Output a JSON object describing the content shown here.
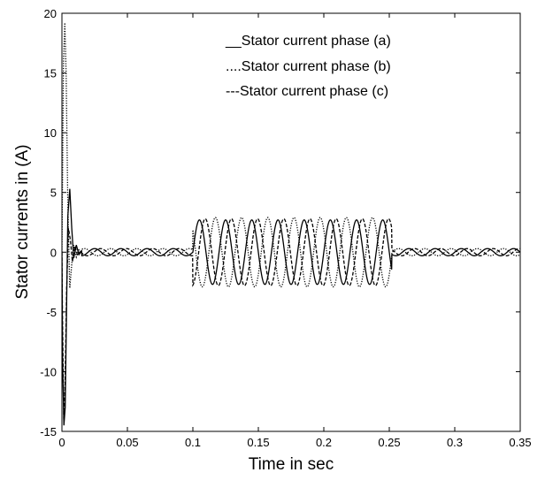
{
  "chart_data": {
    "type": "line",
    "xlabel": "Time in sec",
    "ylabel": "Stator currents in (A)",
    "xlim": [
      0,
      0.35
    ],
    "ylim": [
      -15,
      20
    ],
    "xticks": [
      "0",
      "0.05",
      "0.1",
      "0.15",
      "0.2",
      "0.25",
      "0.3",
      "0.35"
    ],
    "yticks": [
      "20",
      "15",
      "10",
      "5",
      "0",
      "-5",
      "-10",
      "-15"
    ],
    "grid": false,
    "legend": {
      "position": "top-center",
      "entries": [
        "__Stator current phase (a)",
        "....Stator current phase (b)",
        "---Stator current phase (c)"
      ]
    },
    "series": [
      {
        "name": "Stator current phase (a)",
        "style": "solid",
        "startup": [
          [
            0.0005,
            -9
          ],
          [
            0.0015,
            -14.5
          ],
          [
            0.0025,
            -13
          ],
          [
            0.0035,
            -5
          ],
          [
            0.0045,
            3
          ],
          [
            0.006,
            5.3
          ],
          [
            0.0075,
            2
          ],
          [
            0.009,
            -0.5
          ],
          [
            0.011,
            0.6
          ],
          [
            0.013,
            -0.2
          ],
          [
            0.015,
            0.1
          ]
        ],
        "baseline_amplitude": 0.3,
        "fault": {
          "start": 0.1,
          "end": 0.252,
          "amplitude": 2.7,
          "phase": 0
        }
      },
      {
        "name": "Stator current phase (b)",
        "style": "dotted",
        "startup": [
          [
            0.0003,
            4
          ],
          [
            0.0012,
            16
          ],
          [
            0.0022,
            19.2
          ],
          [
            0.0032,
            15
          ],
          [
            0.0045,
            4
          ],
          [
            0.006,
            -3
          ],
          [
            0.0075,
            -1
          ],
          [
            0.009,
            0.6
          ],
          [
            0.011,
            -0.4
          ],
          [
            0.013,
            0.2
          ],
          [
            0.015,
            0
          ]
        ],
        "baseline_amplitude": 0.3,
        "fault": {
          "start": 0.1,
          "end": 0.252,
          "amplitude": 2.9,
          "phase": 2.094
        }
      },
      {
        "name": "Stator current phase (c)",
        "style": "dashed",
        "startup": [
          [
            0.0004,
            -5
          ],
          [
            0.0014,
            -14
          ],
          [
            0.0024,
            -11
          ],
          [
            0.0036,
            -3
          ],
          [
            0.005,
            2
          ],
          [
            0.0065,
            1
          ],
          [
            0.008,
            -0.8
          ],
          [
            0.01,
            0.5
          ],
          [
            0.012,
            -0.3
          ],
          [
            0.014,
            0.1
          ],
          [
            0.015,
            0
          ]
        ],
        "baseline_amplitude": 0.3,
        "fault": {
          "start": 0.1,
          "end": 0.252,
          "amplitude": 2.8,
          "phase": 4.189
        }
      }
    ],
    "signal_frequency_hz": 50
  }
}
